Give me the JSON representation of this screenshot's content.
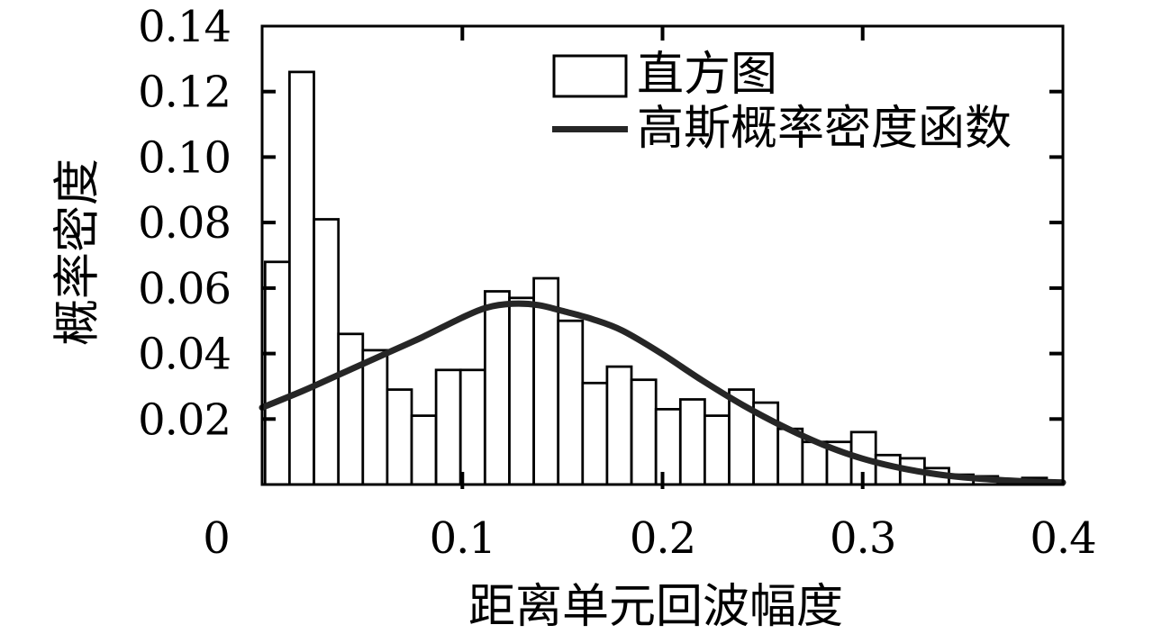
{
  "colors": {
    "ink": "#000000",
    "curve": "#262626",
    "background": "#ffffff"
  },
  "legend": {
    "histogram_label": "直方图",
    "gaussian_label": "高斯概率密度函数"
  },
  "axes": {
    "x_title": "距离单元回波幅度",
    "y_title": "概率密度",
    "x_tick_labels": [
      "0",
      "0.1",
      "0.2",
      "0.3",
      "0.4"
    ],
    "x_tick_values": [
      0,
      0.1,
      0.2,
      0.3,
      0.4
    ],
    "y_tick_labels": [
      "0.02",
      "0.04",
      "0.06",
      "0.08",
      "0.10",
      "0.12",
      "0.14"
    ],
    "y_tick_values": [
      0.02,
      0.04,
      0.06,
      0.08,
      0.1,
      0.12,
      0.14
    ]
  },
  "chart_data": {
    "type": "bar",
    "title": "",
    "xlabel": "距离单元回波幅度",
    "ylabel": "概率密度",
    "xlim": [
      0,
      0.4
    ],
    "ylim": [
      0,
      0.14
    ],
    "grid": false,
    "legend_position": "top-right-inside",
    "series": [
      {
        "name": "直方图",
        "type": "histogram",
        "bin_start": 0.0015,
        "bin_width": 0.0122,
        "values": [
          0.068,
          0.126,
          0.081,
          0.046,
          0.041,
          0.029,
          0.021,
          0.035,
          0.035,
          0.059,
          0.057,
          0.063,
          0.05,
          0.031,
          0.036,
          0.032,
          0.023,
          0.026,
          0.021,
          0.029,
          0.025,
          0.017,
          0.013,
          0.013,
          0.016,
          0.009,
          0.008,
          0.005,
          0.003,
          0.0025,
          0.001,
          0.002
        ]
      },
      {
        "name": "高斯概率密度函数",
        "type": "line",
        "x": [
          0.0,
          0.02,
          0.04,
          0.06,
          0.08,
          0.1,
          0.112,
          0.125,
          0.138,
          0.15,
          0.165,
          0.18,
          0.2,
          0.22,
          0.24,
          0.26,
          0.28,
          0.3,
          0.32,
          0.34,
          0.36,
          0.38,
          0.4
        ],
        "y": [
          0.0235,
          0.0285,
          0.034,
          0.0395,
          0.045,
          0.051,
          0.054,
          0.0552,
          0.0548,
          0.053,
          0.0505,
          0.047,
          0.0398,
          0.0317,
          0.0243,
          0.0178,
          0.0122,
          0.0079,
          0.0049,
          0.0029,
          0.0017,
          0.001,
          0.0006
        ]
      }
    ]
  }
}
